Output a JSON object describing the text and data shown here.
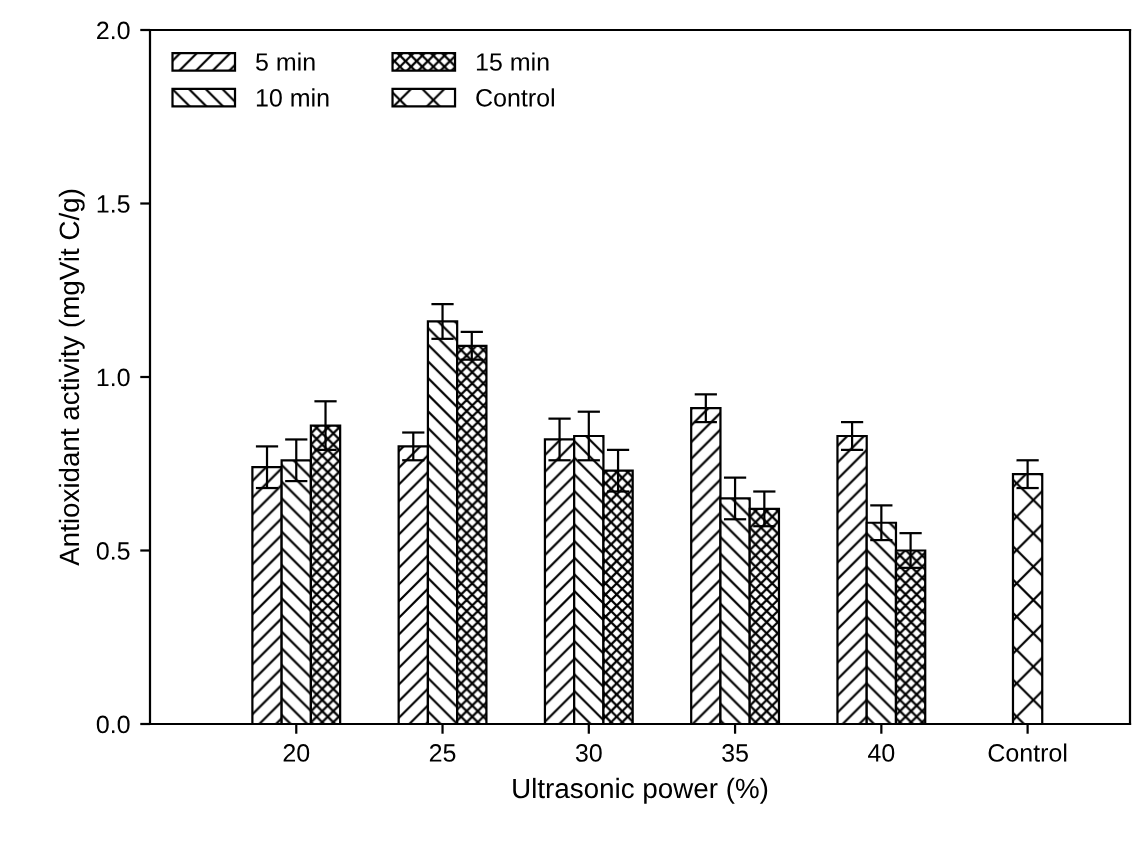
{
  "chart_data": {
    "type": "bar",
    "xlabel": "Ultrasonic power (%)",
    "ylabel": "Antioxidant activity (mgVit C/g)",
    "categories": [
      "20",
      "25",
      "30",
      "35",
      "40",
      "Control"
    ],
    "series": [
      {
        "name": "5 min",
        "color": "#000000",
        "values": [
          0.74,
          0.8,
          0.82,
          0.91,
          0.83,
          null
        ],
        "errors": [
          0.06,
          0.04,
          0.06,
          0.04,
          0.04,
          null
        ]
      },
      {
        "name": "10 min",
        "color": "#000000",
        "values": [
          0.76,
          1.16,
          0.83,
          0.65,
          0.58,
          null
        ],
        "errors": [
          0.06,
          0.05,
          0.07,
          0.06,
          0.05,
          null
        ]
      },
      {
        "name": "15 min",
        "color": "#000000",
        "values": [
          0.86,
          1.09,
          0.73,
          0.62,
          0.5,
          null
        ],
        "errors": [
          0.07,
          0.04,
          0.06,
          0.05,
          0.05,
          null
        ]
      },
      {
        "name": "Control",
        "color": "#000000",
        "values": [
          null,
          null,
          null,
          null,
          null,
          0.72
        ],
        "errors": [
          null,
          null,
          null,
          null,
          null,
          0.04
        ]
      }
    ],
    "ylim": [
      0,
      2.0
    ],
    "yticks": [
      {
        "value": 0,
        "label": "0.0"
      },
      {
        "value": 0.5,
        "label": "0.5"
      },
      {
        "value": 1.0,
        "label": "1.0"
      },
      {
        "value": 1.5,
        "label": "1.5"
      },
      {
        "value": 2.0,
        "label": "2.0"
      }
    ],
    "grid": false,
    "legend": "top left"
  }
}
